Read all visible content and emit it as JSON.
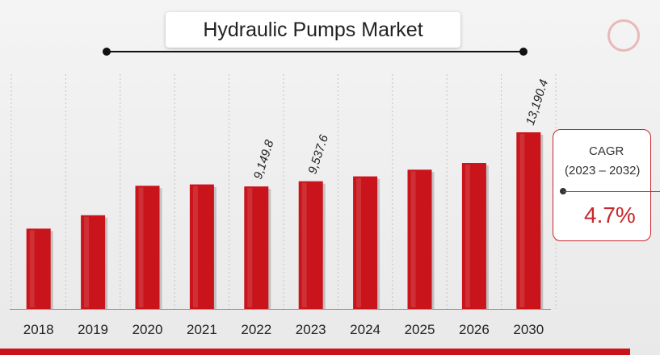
{
  "chart_data": {
    "type": "bar",
    "title": "Hydraulic Pumps Market",
    "categories": [
      "2018",
      "2019",
      "2020",
      "2021",
      "2022",
      "2023",
      "2024",
      "2025",
      "2026",
      "2030"
    ],
    "values": [
      6000,
      7000,
      9200,
      9300,
      9149.8,
      9537.6,
      9900,
      10400,
      10900,
      13190.4
    ],
    "data_labels": [
      "",
      "",
      "",
      "",
      "9,149.8",
      "9,537.6",
      "",
      "",
      "",
      "13,190.4"
    ],
    "ylim": [
      0,
      13500
    ],
    "bar_color": "#c8141a",
    "grid": true
  },
  "cagr": {
    "label": "CAGR",
    "period": "(2023 – 2032)",
    "value": "4.7%"
  },
  "colors": {
    "accent": "#c8141a",
    "bottom_bar": "#c8141a"
  }
}
